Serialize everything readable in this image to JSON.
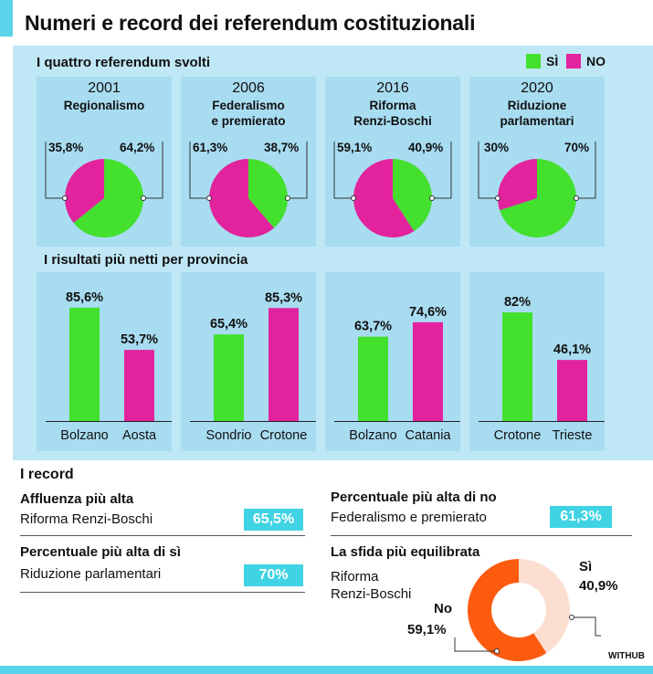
{
  "title": "Numeri e record dei referendum costituzionali",
  "colors": {
    "si": "#43e02e",
    "no": "#e2239d",
    "accent": "#5ad4ea",
    "donut_si": "#fbded0",
    "donut_no": "#fc5b10",
    "panel": "#bfe7f5",
    "card": "#a8dcf1",
    "badge": "#3fd3e3"
  },
  "legend": {
    "si": "SÌ",
    "no": "NO"
  },
  "section1_title": "I quattro referendum svolti",
  "section2_title": "I risultati più netti per provincia",
  "chart_data": [
    {
      "type": "pie",
      "year": "2001",
      "title": "Regionalismo",
      "slices": [
        {
          "name": "NO",
          "value": 35.8,
          "label": "35,8%"
        },
        {
          "name": "SÌ",
          "value": 64.2,
          "label": "64,2%"
        }
      ]
    },
    {
      "type": "pie",
      "year": "2006",
      "title": "Federalismo\ne premierato",
      "slices": [
        {
          "name": "NO",
          "value": 61.3,
          "label": "61,3%"
        },
        {
          "name": "SÌ",
          "value": 38.7,
          "label": "38,7%"
        }
      ]
    },
    {
      "type": "pie",
      "year": "2016",
      "title": "Riforma\nRenzi-Boschi",
      "slices": [
        {
          "name": "NO",
          "value": 59.1,
          "label": "59,1%"
        },
        {
          "name": "SÌ",
          "value": 40.9,
          "label": "40,9%"
        }
      ]
    },
    {
      "type": "pie",
      "year": "2020",
      "title": "Riduzione\nparlamentari",
      "slices": [
        {
          "name": "NO",
          "value": 30,
          "label": "30%"
        },
        {
          "name": "SÌ",
          "value": 70,
          "label": "70%"
        }
      ]
    },
    {
      "type": "bar",
      "categories": [
        "Bolzano",
        "Aosta"
      ],
      "values": [
        85.6,
        53.7
      ],
      "labels": [
        "85,6%",
        "53,7%"
      ],
      "series_colors": [
        "si",
        "no"
      ],
      "ylim": [
        0,
        100
      ]
    },
    {
      "type": "bar",
      "categories": [
        "Sondrio",
        "Crotone"
      ],
      "values": [
        65.4,
        85.3
      ],
      "labels": [
        "65,4%",
        "85,3%"
      ],
      "series_colors": [
        "si",
        "no"
      ],
      "ylim": [
        0,
        100
      ]
    },
    {
      "type": "bar",
      "categories": [
        "Bolzano",
        "Catania"
      ],
      "values": [
        63.7,
        74.6
      ],
      "labels": [
        "63,7%",
        "74,6%"
      ],
      "series_colors": [
        "si",
        "no"
      ],
      "ylim": [
        0,
        100
      ]
    },
    {
      "type": "bar",
      "categories": [
        "Crotone",
        "Trieste"
      ],
      "values": [
        82,
        46.1
      ],
      "labels": [
        "82%",
        "46,1%"
      ],
      "series_colors": [
        "si",
        "no"
      ],
      "ylim": [
        0,
        100
      ]
    },
    {
      "type": "pie",
      "title": "La sfida più equilibrata",
      "subtitle": "Riforma\nRenzi-Boschi",
      "donut": true,
      "slices": [
        {
          "name": "Sì",
          "value": 40.9,
          "label": "40,9%"
        },
        {
          "name": "No",
          "value": 59.1,
          "label": "59,1%"
        }
      ]
    }
  ],
  "records": {
    "title": "I record",
    "affluenza": {
      "heading": "Affluenza più alta",
      "label": "Riforma Renzi-Boschi",
      "value": "65,5%"
    },
    "max_no": {
      "heading": "Percentuale più alta di no",
      "label": "Federalismo e premierato",
      "value": "61,3%"
    },
    "max_si": {
      "heading": "Percentuale più alta di sì",
      "label": "Riduzione parlamentari",
      "value": "70%"
    },
    "sfida": {
      "heading": "La sfida più equilibrata",
      "label": "Riforma\nRenzi-Boschi",
      "si_name": "Sì",
      "si_value": "40,9%",
      "no_name": "No",
      "no_value": "59,1%"
    }
  },
  "credit": "WITHUB"
}
